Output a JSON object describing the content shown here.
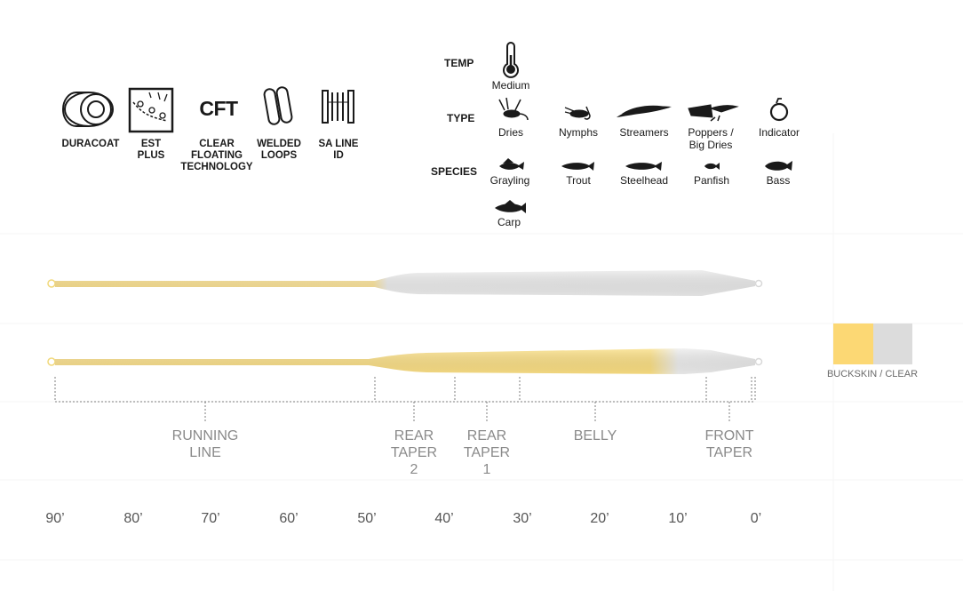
{
  "technologies": [
    {
      "name": "duracoat",
      "icon": "duracoat-icon",
      "label": "DURACOAT"
    },
    {
      "name": "est-plus",
      "icon": "est-plus-icon",
      "label": "EST\nPLUS"
    },
    {
      "name": "cft",
      "icon": "cft-icon",
      "icon_text": "CFT",
      "label": "CLEAR\nFLOATING\nTECHNOLOGY"
    },
    {
      "name": "welded-loops",
      "icon": "welded-loops-icon",
      "label": "WELDED\nLOOPS"
    },
    {
      "name": "sa-line-id",
      "icon": "sa-line-id-icon",
      "label": "SA LINE\nID"
    }
  ],
  "specs": {
    "temp_label": "TEMP",
    "temp_value": "Medium",
    "type_label": "TYPE",
    "types": [
      "Dries",
      "Nymphs",
      "Streamers",
      "Poppers /\nBig Dries",
      "Indicator"
    ],
    "species_label": "SPECIES",
    "species": [
      "Grayling",
      "Trout",
      "Steelhead",
      "Panfish",
      "Bass",
      "Carp"
    ]
  },
  "line_profile": {
    "sections": [
      {
        "label": "RUNNING\nLINE"
      },
      {
        "label": "REAR\nTAPER\n2"
      },
      {
        "label": "REAR\nTAPER\n1"
      },
      {
        "label": "BELLY"
      },
      {
        "label": "FRONT\nTAPER"
      }
    ],
    "scale": [
      "90’",
      "80’",
      "70’",
      "60’",
      "50’",
      "40’",
      "30’",
      "20’",
      "10’",
      "0’"
    ]
  },
  "legend": {
    "label": "BUCKSKIN / CLEAR",
    "colors": {
      "buckskin": "#fcd874",
      "clear": "#dcdcdc"
    }
  },
  "colors": {
    "buckskin": "#fce49a",
    "clear": "#ececec",
    "bracket": "#7d7d7d"
  }
}
